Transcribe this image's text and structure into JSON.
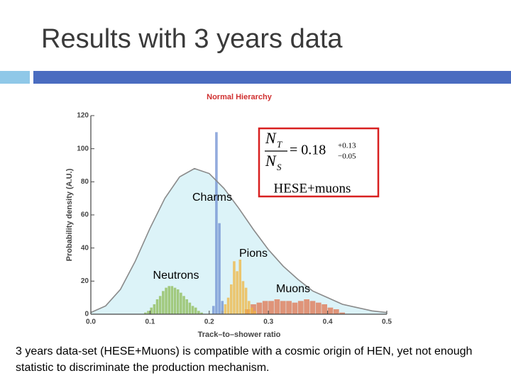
{
  "slide_title": "Results with 3 years data",
  "caption": "3 years data-set (HESE+Muons) is compatible with a cosmic origin of HEN, yet not enough statistic to discriminate the production mechanism.",
  "chart_data": {
    "type": "histogram",
    "title": "Normal Hierarchy",
    "x_label": "Track–to–shower ratio",
    "y_label": "Probability density (A.U.)",
    "xlim": [
      0,
      0.5
    ],
    "ylim": [
      0,
      120
    ],
    "xticks": [
      {
        "value": 0,
        "label": "0.0"
      },
      0.1,
      0.2,
      0.3,
      0.4,
      0.5
    ],
    "yticks": [
      0,
      20,
      40,
      60,
      80,
      100,
      120
    ],
    "curve": {
      "name": "HESE+muons",
      "color": "#8a8a8a",
      "fill": "#dcf3f8",
      "x": [
        0,
        0.025,
        0.05,
        0.075,
        0.1,
        0.125,
        0.15,
        0.175,
        0.2,
        0.225,
        0.25,
        0.275,
        0.3,
        0.325,
        0.35,
        0.375,
        0.4,
        0.425,
        0.45,
        0.475,
        0.5
      ],
      "values": [
        1,
        5,
        15,
        32,
        52,
        70,
        83,
        88,
        85,
        76,
        64,
        51,
        39,
        29,
        21,
        14,
        10,
        6,
        4,
        2,
        1
      ]
    },
    "series": [
      {
        "name": "Neutrons",
        "color": "#8dbb55",
        "bins": [
          0.09,
          0.095,
          0.1,
          0.105,
          0.11,
          0.115,
          0.12,
          0.125,
          0.13,
          0.135,
          0.14,
          0.145,
          0.15,
          0.155,
          0.16,
          0.165,
          0.17,
          0.175,
          0.18,
          0.185,
          0.19
        ],
        "values": [
          1,
          2,
          4,
          6,
          9,
          11,
          14,
          16,
          17,
          17,
          16,
          15,
          13,
          11,
          9,
          7,
          5,
          4,
          2,
          1
        ]
      },
      {
        "name": "Muons",
        "color": "#e0744f",
        "bins": [
          0.26,
          0.27,
          0.28,
          0.29,
          0.3,
          0.31,
          0.32,
          0.33,
          0.34,
          0.35,
          0.36,
          0.37,
          0.38,
          0.39,
          0.4,
          0.41,
          0.42,
          0.43
        ],
        "values": [
          3,
          6,
          7,
          8,
          8,
          9,
          8,
          8,
          7,
          8,
          9,
          8,
          7,
          6,
          4,
          3,
          1
        ]
      },
      {
        "name": "Pions",
        "color": "#f0b640",
        "bins": [
          0.22,
          0.225,
          0.23,
          0.235,
          0.24,
          0.245,
          0.25,
          0.255,
          0.26,
          0.265,
          0.27,
          0.275,
          0.28
        ],
        "values": [
          2,
          6,
          10,
          18,
          32,
          26,
          33,
          20,
          16,
          8,
          4,
          2
        ]
      },
      {
        "name": "Charms",
        "color": "#6f8fd2",
        "bins": [
          0.205,
          0.21,
          0.215,
          0.22,
          0.225
        ],
        "values": [
          5,
          110,
          55,
          8
        ]
      }
    ],
    "annotation": {
      "numerator": "N",
      "numerator_sub": "T",
      "denominator": "N",
      "denominator_sub": "S",
      "value": "= 0.18",
      "upper": "+0.13",
      "lower": "−0.05"
    }
  }
}
